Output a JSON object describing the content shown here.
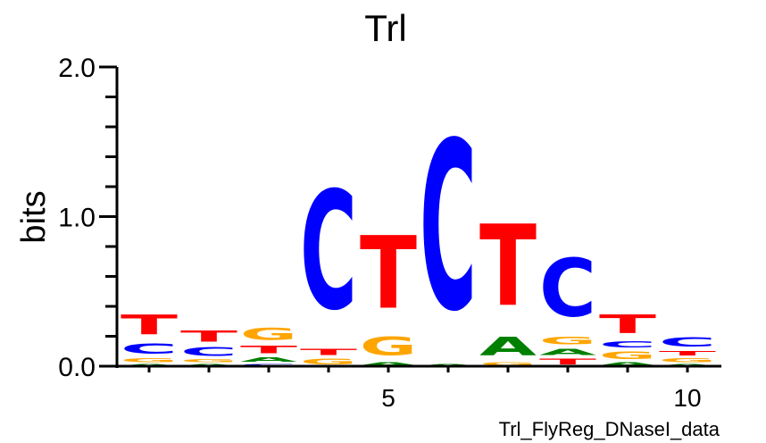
{
  "chart_data": {
    "type": "sequence-logo",
    "title": "Trl",
    "ylabel": "bits",
    "xlabel": "",
    "footer": "Trl_FlyReg_DNaseI_data",
    "ylim": [
      0,
      2.0
    ],
    "y_ticks": [
      "0.0",
      "1.0",
      "2.0"
    ],
    "y_minor_step": 0.2,
    "x_ticks": [
      "5",
      "10"
    ],
    "x_tick_values": [
      5,
      10
    ],
    "positions": [
      1,
      2,
      3,
      4,
      5,
      6,
      7,
      8,
      9,
      10
    ],
    "colors": {
      "A": "#008000",
      "C": "#0000ff",
      "G": "#ffa500",
      "T": "#ff0000"
    },
    "stacks": [
      [
        {
          "base": "A",
          "bits": 0.02
        },
        {
          "base": "G",
          "bits": 0.04
        },
        {
          "base": "C",
          "bits": 0.11
        },
        {
          "base": "T",
          "bits": 0.21
        }
      ],
      [
        {
          "base": "A",
          "bits": 0.02
        },
        {
          "base": "G",
          "bits": 0.03
        },
        {
          "base": "C",
          "bits": 0.09
        },
        {
          "base": "T",
          "bits": 0.12
        }
      ],
      [
        {
          "base": "C",
          "bits": 0.02
        },
        {
          "base": "A",
          "bits": 0.05
        },
        {
          "base": "T",
          "bits": 0.08
        },
        {
          "base": "G",
          "bits": 0.13
        }
      ],
      [
        {
          "base": "G",
          "bits": 0.06
        },
        {
          "base": "T",
          "bits": 0.07
        },
        {
          "base": "C",
          "bits": 1.27
        }
      ],
      [
        {
          "base": "A",
          "bits": 0.03
        },
        {
          "base": "G",
          "bits": 0.2
        },
        {
          "base": "T",
          "bits": 0.78
        }
      ],
      [
        {
          "base": "A",
          "bits": 0.02
        },
        {
          "base": "C",
          "bits": 1.81
        }
      ],
      [
        {
          "base": "G",
          "bits": 0.03
        },
        {
          "base": "A",
          "bits": 0.2
        },
        {
          "base": "T",
          "bits": 0.87
        }
      ],
      [
        {
          "base": "T",
          "bits": 0.06
        },
        {
          "base": "A",
          "bits": 0.07
        },
        {
          "base": "G",
          "bits": 0.08
        },
        {
          "base": "C",
          "bits": 0.62
        }
      ],
      [
        {
          "base": "A",
          "bits": 0.03
        },
        {
          "base": "G",
          "bits": 0.08
        },
        {
          "base": "C",
          "bits": 0.07
        },
        {
          "base": "T",
          "bits": 0.2
        }
      ],
      [
        {
          "base": "A",
          "bits": 0.02
        },
        {
          "base": "G",
          "bits": 0.04
        },
        {
          "base": "T",
          "bits": 0.05
        },
        {
          "base": "C",
          "bits": 0.1
        }
      ]
    ]
  }
}
